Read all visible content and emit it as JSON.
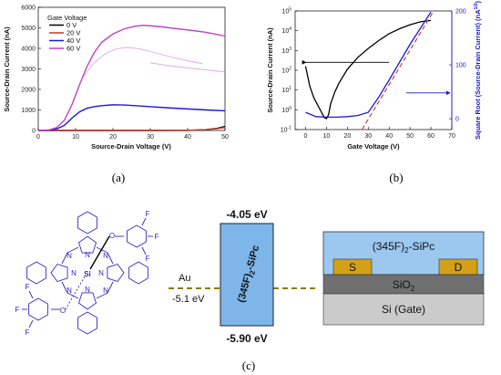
{
  "colors": {
    "v0": "#000000",
    "v20": "#c0392b",
    "v40": "#1a1ad6",
    "v60": "#c040c8",
    "right_axis": "#1a1acc",
    "fit_line": "#c0392b",
    "molecule": "#2a2ac8",
    "band_fill": "#7fb6ea",
    "electrode": "#d4a017",
    "sio2": "#707070",
    "si": "#c8c8c8",
    "fermi": "#8a7a1a"
  },
  "panel_labels": {
    "a": "(a)",
    "b": "(b)",
    "c": "(c)"
  },
  "chart_data": [
    {
      "type": "line",
      "panel": "a",
      "xlabel": "Source-Drain Voltage (V)",
      "ylabel": "Source-Drain Current (nA)",
      "xlim": [
        0,
        50
      ],
      "ylim": [
        0,
        6000
      ],
      "xticks": [
        0,
        10,
        20,
        30,
        40,
        50
      ],
      "yticks": [
        0,
        1000,
        2000,
        3000,
        4000,
        5000,
        6000
      ],
      "legend_title": "Gate Voltage",
      "legend_position": "top-left",
      "series": [
        {
          "name": "0 V",
          "color_key": "v0",
          "x": [
            0,
            10,
            20,
            30,
            40,
            45,
            48,
            50
          ],
          "y": [
            0,
            0,
            0,
            0,
            5,
            40,
            110,
            200
          ]
        },
        {
          "name": "20 V",
          "color_key": "v20",
          "x": [
            0,
            10,
            20,
            30,
            40,
            45,
            48,
            50
          ],
          "y": [
            0,
            0,
            0,
            0,
            5,
            40,
            90,
            150
          ]
        },
        {
          "name": "40 V",
          "color_key": "v40",
          "x": [
            0,
            3,
            5,
            7,
            9,
            11,
            13,
            15,
            17,
            20,
            23,
            26,
            30,
            35,
            40,
            45,
            50
          ],
          "y": [
            0,
            20,
            80,
            250,
            600,
            900,
            1080,
            1160,
            1210,
            1250,
            1240,
            1210,
            1160,
            1100,
            1050,
            1000,
            960
          ]
        },
        {
          "name": "60 V",
          "color_key": "v60",
          "x": [
            0,
            3,
            5,
            7,
            9,
            11,
            13,
            15,
            17,
            20,
            23,
            26,
            28,
            30,
            33,
            36,
            40,
            45,
            50
          ],
          "y": [
            0,
            30,
            150,
            500,
            1250,
            2200,
            3100,
            3800,
            4300,
            4700,
            4950,
            5080,
            5120,
            5100,
            5050,
            4980,
            4900,
            4780,
            4600
          ]
        }
      ],
      "faint_series": [
        {
          "color_key": "v60",
          "x": [
            12,
            15,
            18,
            21,
            24,
            27,
            30,
            33,
            36,
            40,
            44
          ],
          "y": [
            2600,
            3300,
            3750,
            3980,
            4050,
            3980,
            3850,
            3700,
            3560,
            3400,
            3250
          ]
        },
        {
          "color_key": "v60",
          "x": [
            30,
            35,
            40,
            45,
            50
          ],
          "y": [
            3300,
            3150,
            3050,
            2950,
            2850
          ]
        }
      ]
    },
    {
      "type": "line",
      "panel": "b",
      "xlabel": "Gate Voltage (V)",
      "ylabel": "Source-Drain Current (nA)",
      "ylabel_right": "Square Root (Source-Drain Current) (nA",
      "ylabel_right_sup": "1/2",
      "ylabel_right_close": ")",
      "xlim": [
        -5,
        70
      ],
      "xticks": [
        0,
        10,
        20,
        30,
        40,
        50,
        60,
        70
      ],
      "ylim_log10": [
        -1,
        5
      ],
      "yticks": [
        {
          "base": "10",
          "exp": "-1"
        },
        {
          "base": "10",
          "exp": "0"
        },
        {
          "base": "10",
          "exp": "1"
        },
        {
          "base": "10",
          "exp": "2"
        },
        {
          "base": "10",
          "exp": "3"
        },
        {
          "base": "10",
          "exp": "4"
        },
        {
          "base": "10",
          "exp": "5"
        }
      ],
      "y2lim": [
        -20,
        200
      ],
      "y2ticks": [
        0,
        100,
        200
      ],
      "series": [
        {
          "name": "",
          "axis": "left",
          "color_key": "v0",
          "x": [
            0,
            2,
            4,
            6,
            8,
            9,
            10,
            11,
            12,
            14,
            16,
            20,
            25,
            30,
            35,
            40,
            45,
            50,
            55,
            60
          ],
          "log10y": [
            2.2,
            1.2,
            0.6,
            0.2,
            -0.2,
            -0.4,
            -0.45,
            -0.25,
            0.3,
            0.9,
            1.35,
            2.05,
            2.65,
            3.1,
            3.5,
            3.85,
            4.1,
            4.3,
            4.45,
            4.52
          ]
        },
        {
          "name": "",
          "axis": "right",
          "color_key": "v40",
          "x": [
            0,
            5,
            10,
            15,
            20,
            25,
            30,
            35,
            40,
            45,
            50,
            55,
            60
          ],
          "y": [
            12,
            4,
            3,
            3,
            4,
            6,
            12,
            40,
            72,
            105,
            138,
            168,
            198
          ]
        },
        {
          "name": "",
          "axis": "right",
          "color_key": "fit_line",
          "style": "dashed",
          "x": [
            27,
            61
          ],
          "y": [
            -20,
            198
          ]
        }
      ],
      "arrows": [
        {
          "axis": "left",
          "direction": "left",
          "x_from": 40,
          "x_to": 0,
          "log10y": 2.4
        },
        {
          "axis": "right",
          "direction": "right",
          "x_from": 48,
          "x_to": 69,
          "y": 48
        }
      ]
    }
  ],
  "diagram_c": {
    "homo_label": "-5.90 eV",
    "lumo_label": "-4.05 eV",
    "au_label": "Au",
    "au_level": "-5.1 eV",
    "band_label_main": "(345F)",
    "band_label_sub": "2",
    "band_label_tail": "-SiPc",
    "device": {
      "layer_semiconductor_main": "(345F)",
      "layer_semiconductor_sub": "2",
      "layer_semiconductor_tail": "-SiPc",
      "source": "S",
      "drain": "D",
      "sio2_main": "SiO",
      "sio2_sub": "2",
      "si": "Si (Gate)"
    },
    "molecule": {
      "si": "Si",
      "n": "N",
      "o": "O",
      "f": "F"
    }
  }
}
